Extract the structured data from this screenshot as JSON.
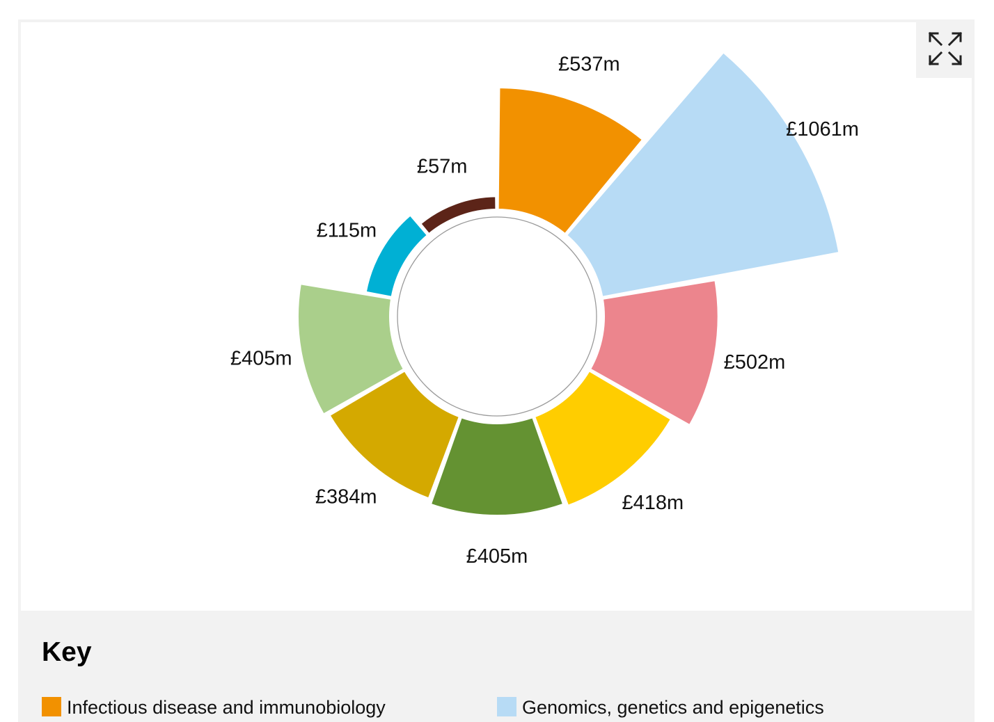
{
  "toolbar": {
    "expand_icon": "expand-arrows-icon"
  },
  "key": {
    "title": "Key"
  },
  "chart_data": {
    "type": "polar-area",
    "values": [
      {
        "label": "£537m",
        "value": 537,
        "color": "#f29100"
      },
      {
        "label": "£1061m",
        "value": 1061,
        "color": "#b7dbf5"
      },
      {
        "label": "£502m",
        "value": 502,
        "color": "#ec858d"
      },
      {
        "label": "£418m",
        "value": 418,
        "color": "#ffcd00"
      },
      {
        "label": "£405m",
        "value": 405,
        "color": "#649232"
      },
      {
        "label": "£384m",
        "value": 384,
        "color": "#d4a900"
      },
      {
        "label": "£405m",
        "value": 405,
        "color": "#aacf8b"
      },
      {
        "label": "£115m",
        "value": 115,
        "color": "#00b0d4"
      },
      {
        "label": "£57m",
        "value": 57,
        "color": "#5c2418"
      }
    ],
    "legend": [
      {
        "name": "Infectious disease and immunobiology",
        "color": "#f29100"
      },
      {
        "name": "Genomics, genetics and epigenetics",
        "color": "#b7dbf5"
      }
    ],
    "legend_position": "bottom"
  }
}
